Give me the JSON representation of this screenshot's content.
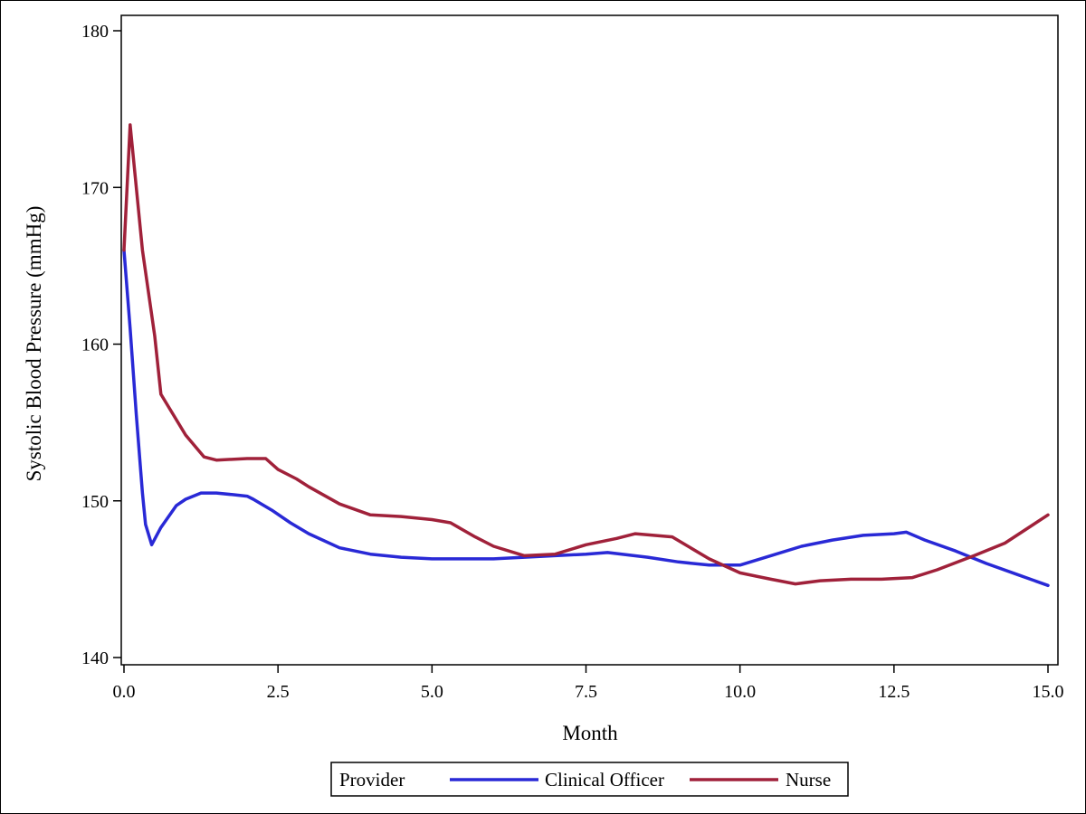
{
  "chart_data": {
    "type": "line",
    "xlabel": "Month",
    "ylabel": "Systolic Blood Pressure (mmHg)",
    "xlim": [
      0,
      15
    ],
    "ylim": [
      140,
      180
    ],
    "x_ticks": [
      "0.0",
      "2.5",
      "5.0",
      "7.5",
      "10.0",
      "12.5",
      "15.0"
    ],
    "x_tick_values": [
      0,
      2.5,
      5,
      7.5,
      10,
      12.5,
      15
    ],
    "y_ticks": [
      "140",
      "150",
      "160",
      "170",
      "180"
    ],
    "y_tick_values": [
      140,
      150,
      160,
      170,
      180
    ],
    "grid": false,
    "legend": {
      "title": "Provider",
      "position": "bottom-center"
    },
    "series": [
      {
        "name": "Clinical Officer",
        "color": "#2929d6",
        "x": [
          0.0,
          0.1,
          0.2,
          0.3,
          0.35,
          0.45,
          0.6,
          0.85,
          1.0,
          1.25,
          1.5,
          1.75,
          2.0,
          2.1,
          2.4,
          2.7,
          3.0,
          3.5,
          4.0,
          4.5,
          5.0,
          5.5,
          6.0,
          6.5,
          7.0,
          7.5,
          7.85,
          8.5,
          9.0,
          9.5,
          10.0,
          10.5,
          11.0,
          11.5,
          12.0,
          12.5,
          12.7,
          13.0,
          13.5,
          14.0,
          14.5,
          15.0
        ],
        "values": [
          166.0,
          161.0,
          155.5,
          150.5,
          148.5,
          147.2,
          148.3,
          149.7,
          150.1,
          150.5,
          150.5,
          150.4,
          150.3,
          150.1,
          149.4,
          148.6,
          147.9,
          147.0,
          146.6,
          146.4,
          146.3,
          146.3,
          146.3,
          146.4,
          146.5,
          146.6,
          146.7,
          146.4,
          146.1,
          145.9,
          145.9,
          146.5,
          147.1,
          147.5,
          147.8,
          147.9,
          148.0,
          147.5,
          146.8,
          146.0,
          145.3,
          144.6
        ]
      },
      {
        "name": "Nurse",
        "color": "#a0213a",
        "x": [
          0.0,
          0.1,
          0.3,
          0.5,
          0.6,
          0.8,
          1.0,
          1.3,
          1.5,
          2.0,
          2.3,
          2.5,
          2.8,
          3.0,
          3.5,
          4.0,
          4.5,
          5.0,
          5.3,
          5.7,
          6.0,
          6.5,
          7.0,
          7.5,
          8.0,
          8.3,
          8.9,
          9.5,
          10.0,
          10.5,
          10.9,
          11.3,
          11.8,
          12.3,
          12.8,
          13.2,
          13.8,
          14.3,
          15.0
        ],
        "values": [
          166.0,
          174.0,
          166.0,
          160.5,
          156.8,
          155.5,
          154.2,
          152.8,
          152.6,
          152.7,
          152.7,
          152.0,
          151.4,
          150.9,
          149.8,
          149.1,
          149.0,
          148.8,
          148.6,
          147.7,
          147.1,
          146.5,
          146.6,
          147.2,
          147.6,
          147.9,
          147.7,
          146.3,
          145.4,
          145.0,
          144.7,
          144.9,
          145.0,
          145.0,
          145.1,
          145.6,
          146.5,
          147.3,
          149.1
        ]
      }
    ]
  }
}
